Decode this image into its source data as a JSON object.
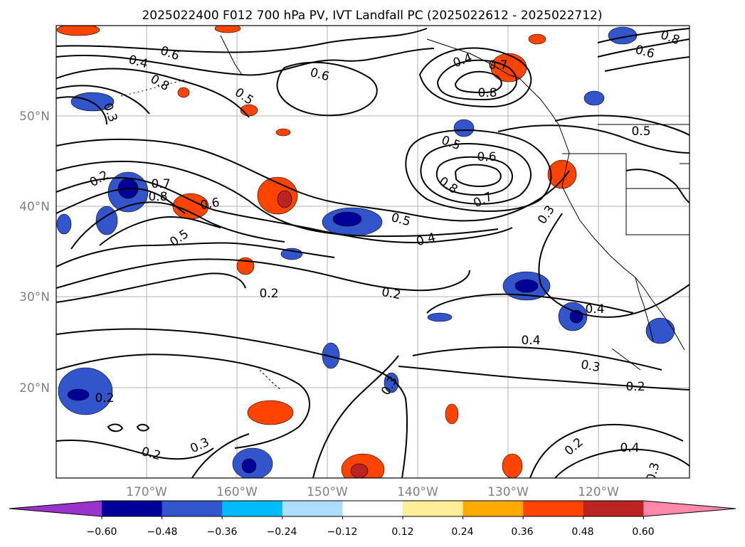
{
  "title": "2025022400 F012 700 hPa PV, IVT Landfall PC (2025022612 - 2025022712)",
  "map": {
    "lat_labels": [
      "50°N",
      "40°N",
      "30°N",
      "20°N"
    ],
    "lon_labels": [
      "170°W",
      "160°W",
      "150°W",
      "140°W",
      "130°W",
      "120°W"
    ],
    "gridline_color": "#b0b0b0",
    "tick_label_color": "#808080",
    "contour_color": "#000000",
    "contour_labels": [
      "0.6",
      "0.4",
      "0.8",
      "0.5",
      "0.3",
      "0.6",
      "0.2",
      "0.7",
      "0.8",
      "0.6",
      "0.5",
      "0.2",
      "0.5",
      "0.6",
      "0.8",
      "0.7",
      "0.5",
      "0.4",
      "0.3",
      "0.2",
      "0.8",
      "0.4",
      "0.7",
      "0.8",
      "0.6",
      "0.5",
      "0.4",
      "0.4",
      "0.3",
      "0.2",
      "0.2",
      "0.3",
      "0.3",
      "0.2",
      "0.4",
      "0.3",
      "0.2"
    ]
  },
  "colorbar": {
    "colors": [
      "#9933cc",
      "#000099",
      "#3355cc",
      "#00bbff",
      "#aaddff",
      "#ffffff",
      "#ffee99",
      "#ffaa00",
      "#ff4400",
      "#bb2222",
      "#ff88aa"
    ],
    "tick_labels": [
      "−0.60",
      "−0.48",
      "−0.36",
      "−0.24",
      "−0.12",
      "0.12",
      "0.24",
      "0.36",
      "0.48",
      "0.60"
    ]
  }
}
